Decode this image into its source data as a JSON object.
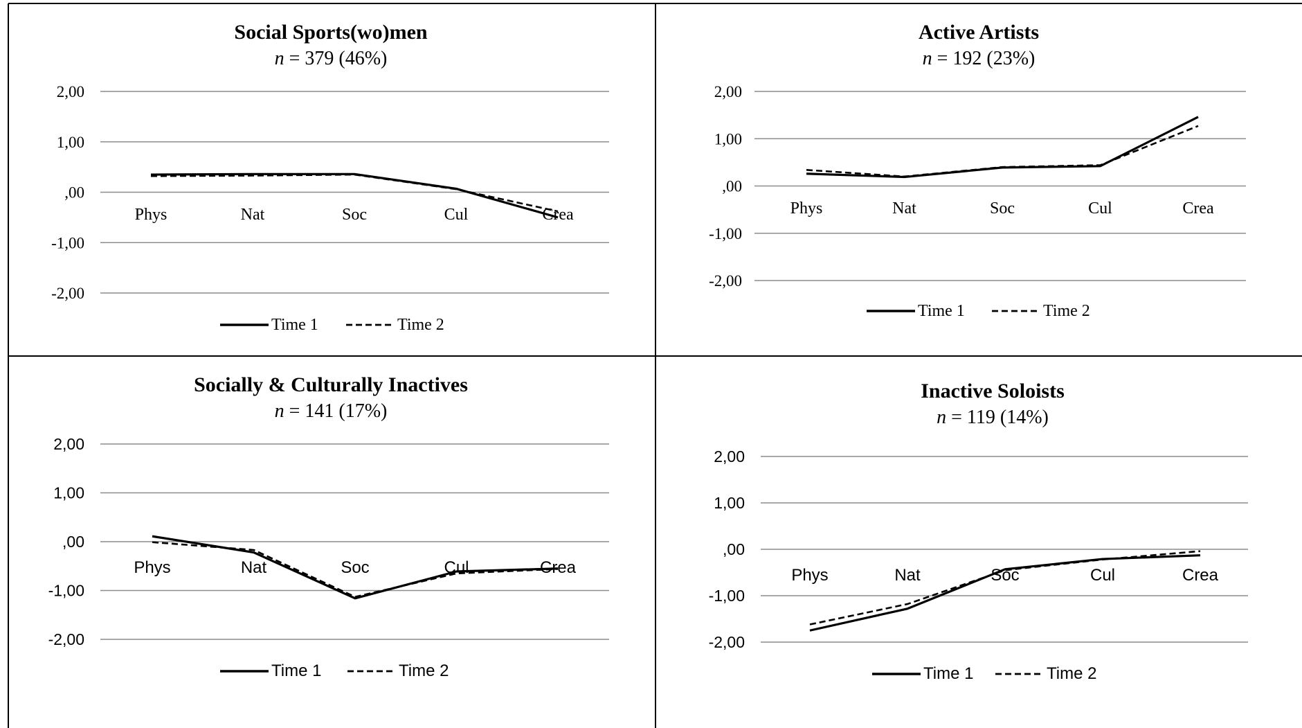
{
  "chart_data": [
    {
      "type": "line",
      "title": "Social Sports(wo)men",
      "subtitle_n": "n",
      "subtitle_rest": " = 379 (46%)",
      "categories": [
        "Phys",
        "Nat",
        "Soc",
        "Cul",
        "Crea"
      ],
      "yticks": [
        "2,00",
        "1,00",
        ",00",
        "-1,00",
        "-2,00"
      ],
      "ylim": [
        -2,
        2
      ],
      "grid": true,
      "legend": "bottom",
      "series": [
        {
          "name": "Time 1",
          "values": [
            0.35,
            0.36,
            0.36,
            0.07,
            -0.5
          ]
        },
        {
          "name": "Time 2",
          "values": [
            0.32,
            0.33,
            0.35,
            0.06,
            -0.38
          ]
        }
      ]
    },
    {
      "type": "line",
      "title": "Active Artists",
      "subtitle_n": "n",
      "subtitle_rest": " = 192 (23%)",
      "categories": [
        "Phys",
        "Nat",
        "Soc",
        "Cul",
        "Crea"
      ],
      "yticks": [
        "2,00",
        "1,00",
        ",00",
        "-1,00",
        "-2,00"
      ],
      "ylim": [
        -2,
        2
      ],
      "grid": true,
      "legend": "bottom",
      "series": [
        {
          "name": "Time 1",
          "values": [
            0.26,
            0.19,
            0.39,
            0.42,
            1.46
          ]
        },
        {
          "name": "Time 2",
          "values": [
            0.34,
            0.2,
            0.4,
            0.44,
            1.27
          ]
        }
      ]
    },
    {
      "type": "line",
      "title": "Socially & Culturally Inactives",
      "subtitle_n": "n",
      "subtitle_rest": " = 141 (17%)",
      "categories": [
        "Phys",
        "Nat",
        "Soc",
        "Cul",
        "Crea"
      ],
      "yticks": [
        "2,00",
        "1,00",
        ",00",
        "-1,00",
        "-2,00"
      ],
      "ylim": [
        -2,
        2
      ],
      "grid": true,
      "legend": "bottom",
      "series": [
        {
          "name": "Time 1",
          "values": [
            0.11,
            -0.22,
            -1.16,
            -0.61,
            -0.55
          ]
        },
        {
          "name": "Time 2",
          "values": [
            -0.01,
            -0.17,
            -1.13,
            -0.65,
            -0.56
          ]
        }
      ]
    },
    {
      "type": "line",
      "title": "Inactive Soloists",
      "subtitle_n": "n",
      "subtitle_rest": " = 119 (14%)",
      "categories": [
        "Phys",
        "Nat",
        "Soc",
        "Cul",
        "Crea"
      ],
      "yticks": [
        "2,00",
        "1,00",
        ",00",
        "-1,00",
        "-2,00"
      ],
      "ylim": [
        -2,
        2
      ],
      "grid": true,
      "legend": "bottom",
      "series": [
        {
          "name": "Time 1",
          "values": [
            -1.75,
            -1.28,
            -0.43,
            -0.21,
            -0.13
          ]
        },
        {
          "name": "Time 2",
          "values": [
            -1.62,
            -1.18,
            -0.45,
            -0.22,
            -0.04
          ]
        }
      ]
    }
  ]
}
